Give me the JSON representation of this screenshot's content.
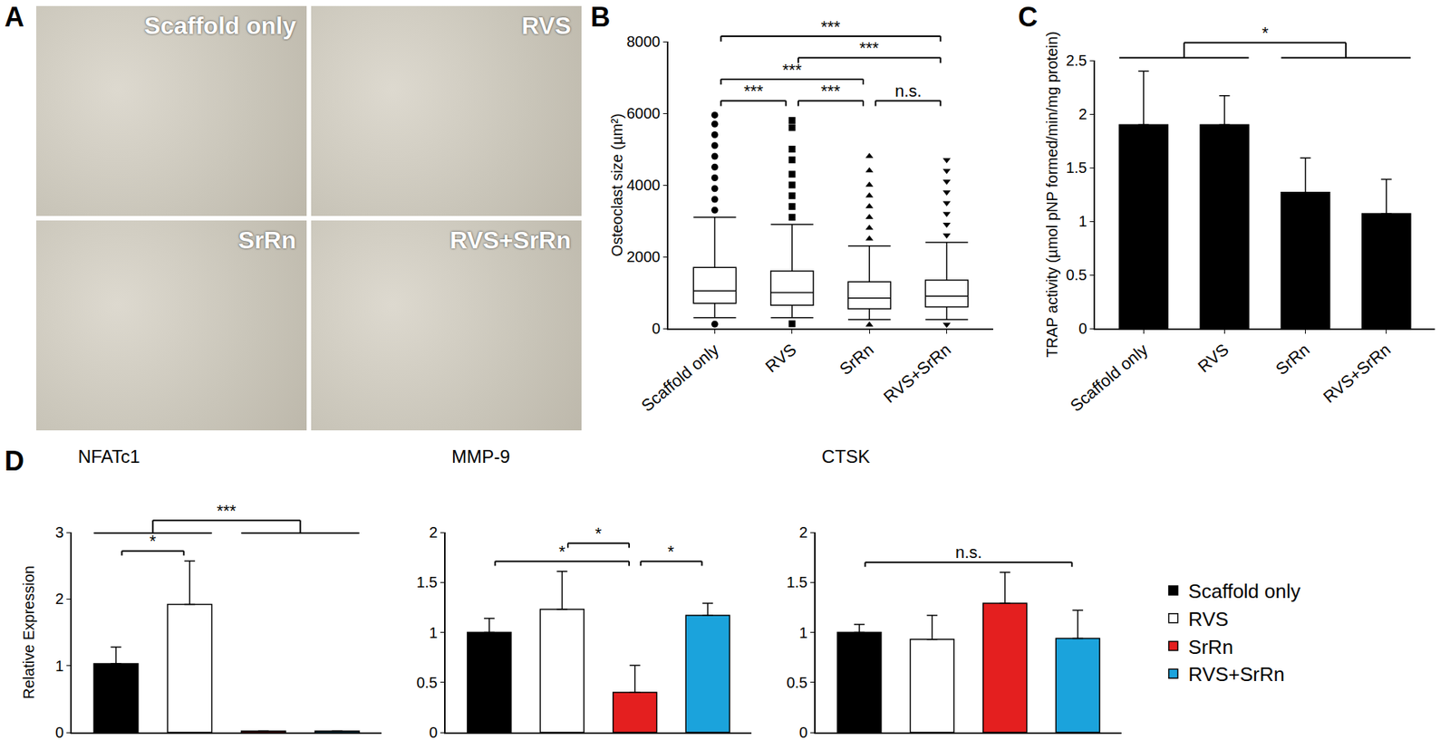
{
  "panel_a": {
    "panel": "A",
    "images": [
      "Scaffold only",
      "RVS",
      "SrRn",
      "RVS+SrRn"
    ]
  },
  "chart_data": [
    {
      "panel": "B",
      "type": "box",
      "ylabel": "Osteoclast size (µm²)",
      "categories": [
        "Scaffold only",
        "RVS",
        "SrRn",
        "RVS+SrRn"
      ],
      "lower_whisker": [
        300,
        300,
        250,
        250
      ],
      "q1": [
        700,
        650,
        550,
        600
      ],
      "median": [
        1050,
        1000,
        850,
        900
      ],
      "q3": [
        1700,
        1600,
        1300,
        1350
      ],
      "upper_whisker": [
        3100,
        2900,
        2300,
        2400
      ],
      "outliers": [
        [
          120,
          3300,
          3600,
          3900,
          4200,
          4500,
          4800,
          5100,
          5400,
          5700,
          5950
        ],
        [
          130,
          3100,
          3400,
          3700,
          4000,
          4300,
          4700,
          5000,
          5600,
          5800
        ],
        [
          100,
          2500,
          2800,
          3100,
          3400,
          3700,
          4000,
          4400,
          4800
        ],
        [
          110,
          2600,
          2900,
          3200,
          3500,
          3800,
          4100,
          4400,
          4700
        ]
      ],
      "markers": [
        "circle",
        "square",
        "triangle-up",
        "triangle-down"
      ],
      "color": "#000000",
      "ylim": [
        0,
        8000
      ],
      "yticks": [
        0,
        2000,
        4000,
        6000,
        8000
      ],
      "grid": false,
      "significance": [
        {
          "from": "Scaffold only",
          "to": "RVS",
          "label": "***"
        },
        {
          "from": "RVS",
          "to": "SrRn",
          "label": "***"
        },
        {
          "from": "SrRn",
          "to": "RVS+SrRn",
          "label": "n.s."
        },
        {
          "from": "Scaffold only",
          "to": "SrRn",
          "label": "***"
        },
        {
          "from": "RVS",
          "to": "RVS+SrRn",
          "label": "***"
        },
        {
          "from": "Scaffold only",
          "to": "RVS+SrRn",
          "label": "***"
        }
      ]
    },
    {
      "panel": "C",
      "type": "bar",
      "ylabel": "TRAP activity (µmol pNP formed/min/mg protein)",
      "categories": [
        "Scaffold only",
        "RVS",
        "SrRn",
        "RVS+SrRn"
      ],
      "values": [
        1.9,
        1.9,
        1.27,
        1.07
      ],
      "errors": [
        0.5,
        0.27,
        0.32,
        0.32
      ],
      "color": "#000000",
      "ylim": [
        0,
        2.5
      ],
      "yticks": [
        0,
        0.5,
        1,
        1.5,
        2,
        2.5
      ],
      "grid": false,
      "significance": [
        {
          "from": [
            "Scaffold only",
            "RVS"
          ],
          "to": [
            "SrRn",
            "RVS+SrRn"
          ],
          "label": "*"
        }
      ]
    },
    {
      "panel": "D",
      "type": "bar",
      "title": "NFATc1",
      "ylabel": "Relative Expression",
      "categories": [
        "Scaffold only",
        "RVS",
        "SrRn",
        "RVS+SrRn"
      ],
      "values": [
        1.03,
        1.92,
        0.02,
        0.02
      ],
      "errors": [
        0.25,
        0.65,
        0,
        0
      ],
      "colors": [
        "#000000",
        "#ffffff",
        "#e41f1f",
        "#1ba3dc"
      ],
      "ylim": [
        0,
        3
      ],
      "yticks": [
        0,
        1,
        2,
        3
      ],
      "grid": false,
      "tick_labels": "y",
      "significance": [
        {
          "from": "Scaffold only",
          "to": "RVS",
          "label": "*"
        },
        {
          "from": [
            "Scaffold only",
            "RVS"
          ],
          "to": [
            "SrRn",
            "RVS+SrRn"
          ],
          "label": "***"
        }
      ]
    },
    {
      "type": "bar",
      "title": "MMP-9",
      "categories": [
        "Scaffold only",
        "RVS",
        "SrRn",
        "RVS+SrRn"
      ],
      "values": [
        1.0,
        1.23,
        0.4,
        1.17
      ],
      "errors": [
        0.14,
        0.38,
        0.27,
        0.12
      ],
      "colors": [
        "#000000",
        "#ffffff",
        "#e41f1f",
        "#1ba3dc"
      ],
      "ylim": [
        0,
        2
      ],
      "yticks": [
        0,
        0.5,
        1,
        1.5,
        2
      ],
      "grid": false,
      "tick_labels": "y",
      "significance": [
        {
          "from": "Scaffold only",
          "to": "SrRn",
          "label": "*"
        },
        {
          "from": "RVS",
          "to": "SrRn",
          "label": "*"
        },
        {
          "from": "SrRn",
          "to": "RVS+SrRn",
          "label": "*"
        }
      ]
    },
    {
      "type": "bar",
      "title": "CTSK",
      "categories": [
        "Scaffold only",
        "RVS",
        "SrRn",
        "RVS+SrRn"
      ],
      "values": [
        1.0,
        0.93,
        1.29,
        0.94
      ],
      "errors": [
        0.08,
        0.24,
        0.31,
        0.28
      ],
      "colors": [
        "#000000",
        "#ffffff",
        "#e41f1f",
        "#1ba3dc"
      ],
      "ylim": [
        0,
        2
      ],
      "yticks": [
        0,
        0.5,
        1,
        1.5,
        2
      ],
      "grid": false,
      "tick_labels": "y",
      "legend": "right",
      "significance": [
        {
          "from": "Scaffold only",
          "to": "RVS+SrRn",
          "label": "n.s."
        }
      ]
    }
  ]
}
